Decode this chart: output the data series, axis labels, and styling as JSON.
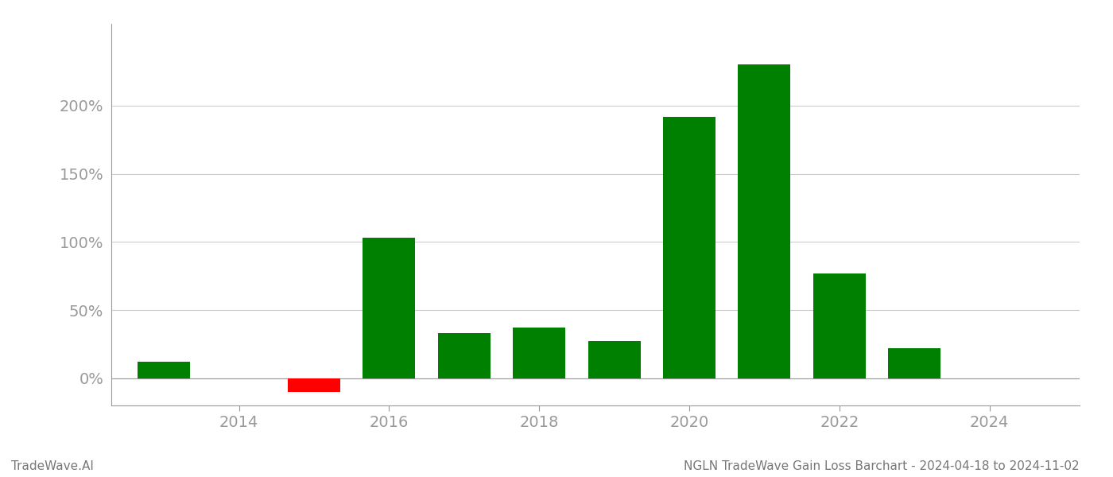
{
  "years": [
    2013,
    2015,
    2016,
    2017,
    2018,
    2019,
    2020,
    2021,
    2022,
    2023
  ],
  "values": [
    0.12,
    -0.1,
    1.03,
    0.33,
    0.37,
    0.27,
    1.92,
    2.3,
    0.77,
    0.22
  ],
  "bar_colors": [
    "#008000",
    "#ff0000",
    "#008000",
    "#008000",
    "#008000",
    "#008000",
    "#008000",
    "#008000",
    "#008000",
    "#008000"
  ],
  "background_color": "#ffffff",
  "grid_color": "#cccccc",
  "title": "NGLN TradeWave Gain Loss Barchart - 2024-04-18 to 2024-11-02",
  "watermark": "TradeWave.AI",
  "xlim": [
    2012.3,
    2025.2
  ],
  "ylim": [
    -0.2,
    2.6
  ],
  "xtick_values": [
    2014,
    2016,
    2018,
    2020,
    2022,
    2024
  ],
  "ytick_values": [
    0.0,
    0.5,
    1.0,
    1.5,
    2.0
  ],
  "ytick_labels": [
    "0%",
    "50%",
    "100%",
    "150%",
    "200%"
  ],
  "bar_width": 0.7,
  "title_fontsize": 11,
  "watermark_fontsize": 11,
  "tick_fontsize": 14,
  "tick_color": "#999999",
  "spine_color": "#999999"
}
